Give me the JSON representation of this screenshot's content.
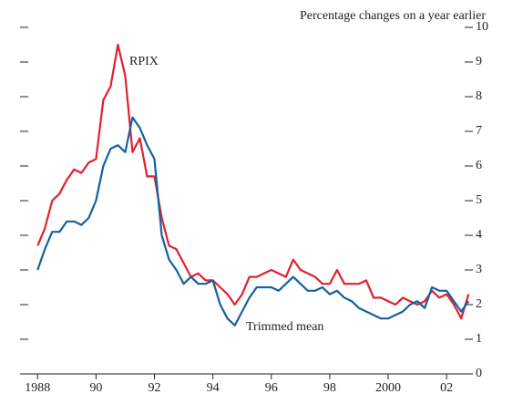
{
  "chart_data": {
    "type": "line",
    "subtitle": "Percentage changes on a year earlier",
    "annotations": [
      "RPIX",
      "Trimmed mean"
    ],
    "x": [
      1988.0,
      1988.25,
      1988.5,
      1988.75,
      1989.0,
      1989.25,
      1989.5,
      1989.75,
      1990.0,
      1990.25,
      1990.5,
      1990.75,
      1991.0,
      1991.25,
      1991.5,
      1991.75,
      1992.0,
      1992.25,
      1992.5,
      1992.75,
      1993.0,
      1993.25,
      1993.5,
      1993.75,
      1994.0,
      1994.25,
      1994.5,
      1994.75,
      1995.0,
      1995.25,
      1995.5,
      1995.75,
      1996.0,
      1996.25,
      1996.5,
      1996.75,
      1997.0,
      1997.25,
      1997.5,
      1997.75,
      1998.0,
      1998.25,
      1998.5,
      1998.75,
      1999.0,
      1999.25,
      1999.5,
      1999.75,
      2000.0,
      2000.25,
      2000.5,
      2000.75,
      2001.0,
      2001.25,
      2001.5,
      2001.75,
      2002.0,
      2002.25,
      2002.5,
      2002.75
    ],
    "series": [
      {
        "name": "RPIX",
        "color": "#e3202e",
        "values": [
          3.7,
          4.2,
          5.0,
          5.2,
          5.6,
          5.9,
          5.8,
          6.1,
          6.2,
          7.9,
          8.3,
          9.5,
          8.6,
          6.4,
          6.8,
          5.7,
          5.7,
          4.5,
          3.7,
          3.6,
          3.2,
          2.8,
          2.9,
          2.7,
          2.7,
          2.5,
          2.3,
          2.0,
          2.3,
          2.8,
          2.8,
          2.9,
          3.0,
          2.9,
          2.8,
          3.3,
          3.0,
          2.9,
          2.8,
          2.6,
          2.6,
          3.0,
          2.6,
          2.6,
          2.6,
          2.7,
          2.2,
          2.2,
          2.1,
          2.0,
          2.2,
          2.1,
          2.0,
          2.1,
          2.4,
          2.2,
          2.3,
          2.0,
          1.6,
          2.3
        ]
      },
      {
        "name": "Trimmed mean",
        "color": "#15609e",
        "values": [
          3.0,
          3.6,
          4.1,
          4.1,
          4.4,
          4.4,
          4.3,
          4.5,
          5.0,
          6.0,
          6.5,
          6.6,
          6.4,
          7.4,
          7.1,
          6.6,
          6.2,
          4.0,
          3.3,
          3.0,
          2.6,
          2.8,
          2.6,
          2.6,
          2.7,
          2.0,
          1.6,
          1.4,
          1.8,
          2.2,
          2.5,
          2.5,
          2.5,
          2.4,
          2.6,
          2.8,
          2.6,
          2.4,
          2.4,
          2.5,
          2.3,
          2.4,
          2.2,
          2.1,
          1.9,
          1.8,
          1.7,
          1.6,
          1.6,
          1.7,
          1.8,
          2.0,
          2.1,
          1.9,
          2.5,
          2.4,
          2.4,
          2.1,
          1.8,
          2.1
        ]
      }
    ],
    "xlim": [
      1987.4,
      2002.9
    ],
    "xticks": [
      {
        "value": 1988,
        "label": "1988"
      },
      {
        "value": 1990,
        "label": "90"
      },
      {
        "value": 1992,
        "label": "92"
      },
      {
        "value": 1994,
        "label": "94"
      },
      {
        "value": 1996,
        "label": "96"
      },
      {
        "value": 1998,
        "label": "98"
      },
      {
        "value": 2000,
        "label": "2000"
      },
      {
        "value": 2002,
        "label": "02"
      }
    ],
    "ylim": [
      0,
      10
    ],
    "yticks": [
      0,
      1,
      2,
      3,
      4,
      5,
      6,
      7,
      8,
      9,
      10
    ]
  }
}
